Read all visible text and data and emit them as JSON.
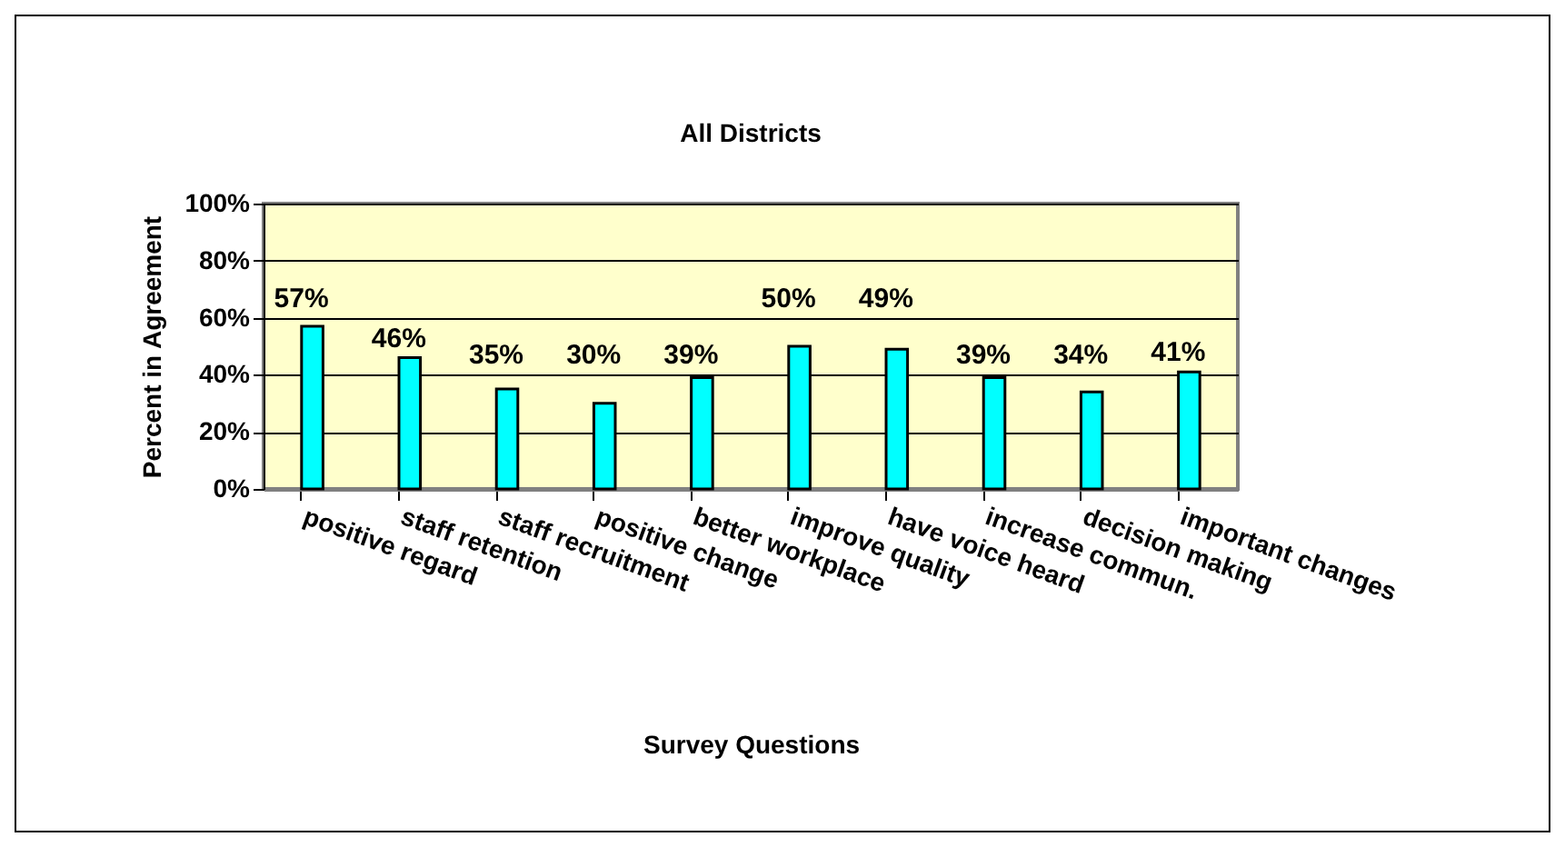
{
  "chart_data": {
    "type": "bar",
    "title": "All Districts",
    "xlabel": "Survey Questions",
    "ylabel": "Percent in Agreement",
    "categories": [
      "positive regard",
      "staff retention",
      "staff recruitment",
      "positive change",
      "better workplace",
      "improve quality",
      "have voice heard",
      "increase commun.",
      "decision making",
      "important changes"
    ],
    "values": [
      57,
      46,
      35,
      30,
      39,
      50,
      49,
      39,
      34,
      41
    ],
    "value_labels": [
      "57%",
      "46%",
      "35%",
      "30%",
      "39%",
      "50%",
      "49%",
      "39%",
      "34%",
      "41%"
    ],
    "color": "#00ffff",
    "ylim": [
      0,
      100
    ],
    "yticks": [
      {
        "value": 0,
        "label": "0%"
      },
      {
        "value": 20,
        "label": "20%"
      },
      {
        "value": 40,
        "label": "40%"
      },
      {
        "value": 60,
        "label": "60%"
      },
      {
        "value": 80,
        "label": "80%"
      },
      {
        "value": 100,
        "label": "100%"
      }
    ],
    "grid": "y"
  }
}
